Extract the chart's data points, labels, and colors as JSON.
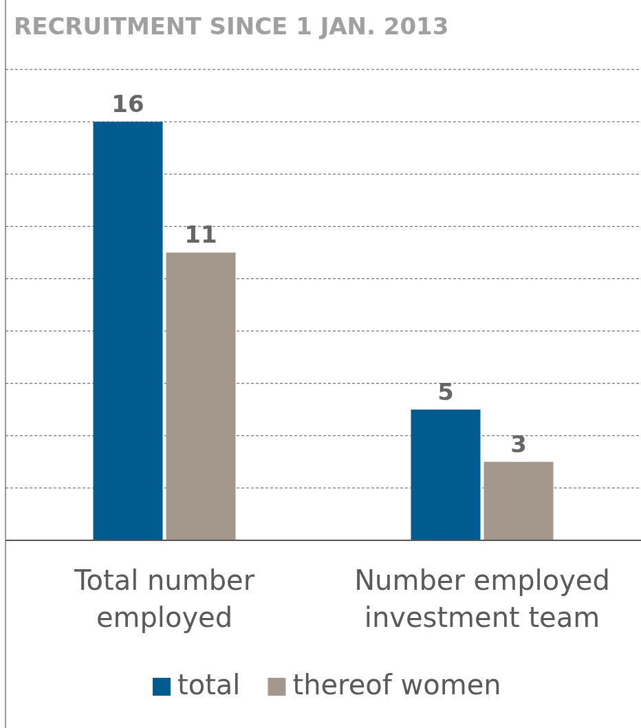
{
  "chart_data": {
    "type": "bar",
    "title": "RECRUITMENT SINCE 1 JAN. 2013",
    "categories": [
      "Total number employed",
      "Number employed investment team"
    ],
    "series": [
      {
        "name": "total",
        "color": "#005b8f",
        "values": [
          16,
          5
        ]
      },
      {
        "name": "thereof women",
        "color": "#a4988d",
        "values": [
          11,
          3
        ]
      }
    ],
    "ylim": [
      0,
      18
    ],
    "yticks": [
      {
        "value": 2,
        "label": null
      },
      {
        "value": 4,
        "label": null
      },
      {
        "value": 6,
        "label": null
      },
      {
        "value": 8,
        "label": null
      },
      {
        "value": 10,
        "label": null
      },
      {
        "value": 12,
        "label": null
      },
      {
        "value": 14,
        "label": null
      },
      {
        "value": 16,
        "label": null
      },
      {
        "value": 18,
        "label": null
      }
    ],
    "tick_labels": "x",
    "grid": "y",
    "data_labels": true,
    "legend": "bottom"
  }
}
